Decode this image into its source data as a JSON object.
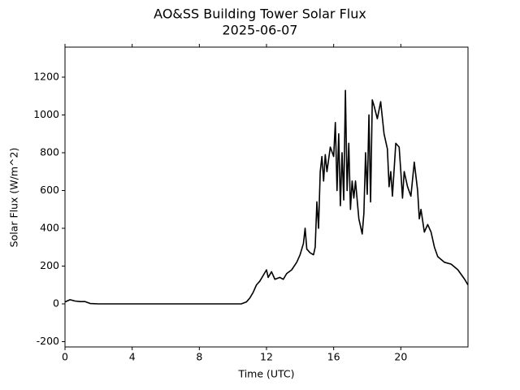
{
  "chart_data": {
    "type": "line",
    "title": "AO&SS Building Tower Solar Flux",
    "subtitle": "2025-06-07",
    "x_label": "Time (UTC)",
    "y_label": "Solar Flux (W/m^2)",
    "color": "#000000",
    "xlim": [
      0,
      24
    ],
    "xticks": [
      0,
      4,
      8,
      12,
      16,
      20
    ],
    "ylim": [
      -228,
      1359
    ],
    "yticks": [
      -200,
      0,
      200,
      400,
      600,
      800,
      1000,
      1200
    ],
    "x": [
      0,
      0.3,
      0.6,
      0.9,
      1.2,
      1.5,
      2,
      4,
      6,
      8,
      10,
      10.5,
      10.8,
      11.0,
      11.2,
      11.4,
      11.6,
      11.8,
      12.0,
      12.1,
      12.3,
      12.5,
      12.8,
      13.0,
      13.2,
      13.5,
      13.8,
      14.0,
      14.2,
      14.3,
      14.4,
      14.6,
      14.8,
      14.9,
      15.0,
      15.1,
      15.2,
      15.3,
      15.4,
      15.5,
      15.6,
      15.8,
      16.0,
      16.1,
      16.2,
      16.3,
      16.4,
      16.5,
      16.6,
      16.7,
      16.8,
      16.9,
      17.0,
      17.1,
      17.2,
      17.3,
      17.5,
      17.7,
      17.8,
      17.9,
      18.0,
      18.1,
      18.2,
      18.3,
      18.4,
      18.6,
      18.8,
      19.0,
      19.2,
      19.3,
      19.4,
      19.5,
      19.7,
      19.9,
      20.0,
      20.1,
      20.2,
      20.4,
      20.6,
      20.8,
      21.0,
      21.1,
      21.2,
      21.4,
      21.6,
      21.8,
      22.0,
      22.2,
      22.6,
      23.0,
      23.4,
      23.8,
      24
    ],
    "values": [
      10,
      22,
      15,
      12,
      12,
      2,
      0,
      0,
      0,
      0,
      0,
      0,
      10,
      30,
      60,
      100,
      120,
      150,
      180,
      140,
      170,
      130,
      140,
      130,
      160,
      180,
      220,
      260,
      320,
      400,
      290,
      270,
      260,
      300,
      540,
      400,
      700,
      780,
      650,
      790,
      700,
      830,
      780,
      960,
      600,
      900,
      520,
      800,
      550,
      1130,
      600,
      850,
      500,
      650,
      560,
      650,
      450,
      370,
      480,
      800,
      580,
      1000,
      540,
      1080,
      1050,
      980,
      1070,
      900,
      820,
      620,
      700,
      570,
      850,
      830,
      700,
      560,
      700,
      620,
      570,
      750,
      600,
      450,
      500,
      380,
      420,
      380,
      300,
      250,
      220,
      210,
      180,
      130,
      100
    ]
  }
}
